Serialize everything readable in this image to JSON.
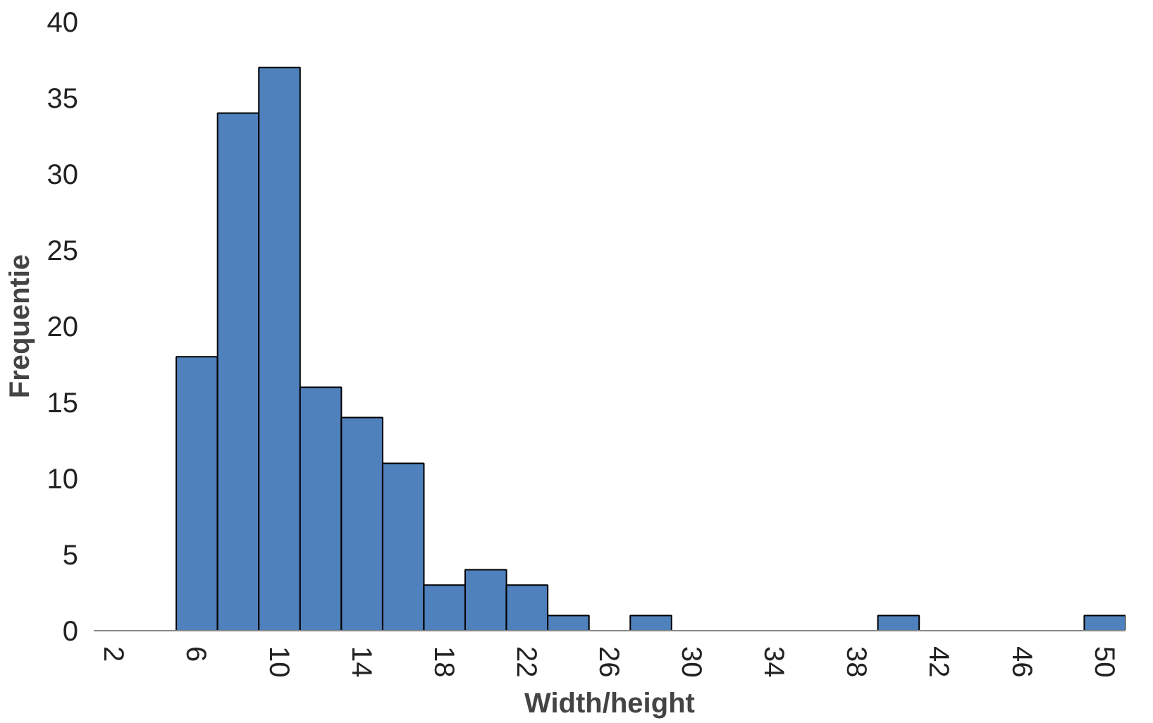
{
  "chart_data": {
    "type": "bar",
    "xlabel": "Width/height",
    "ylabel": "Frequentie",
    "categories": [
      "2",
      null,
      "6",
      null,
      "10",
      null,
      "14",
      null,
      "18",
      null,
      "22",
      null,
      "26",
      null,
      "30",
      null,
      "34",
      null,
      "38",
      null,
      "42",
      null,
      "46",
      null,
      "50"
    ],
    "values": [
      0,
      0,
      18,
      34,
      37,
      16,
      14,
      11,
      3,
      4,
      3,
      1,
      0,
      1,
      0,
      0,
      0,
      0,
      0,
      1,
      0,
      0,
      0,
      0,
      1
    ],
    "color": "#4f81bd",
    "ylim": [
      0,
      40
    ],
    "yticks": [
      0,
      5,
      10,
      15,
      20,
      25,
      30,
      35,
      40
    ],
    "grid": false
  }
}
